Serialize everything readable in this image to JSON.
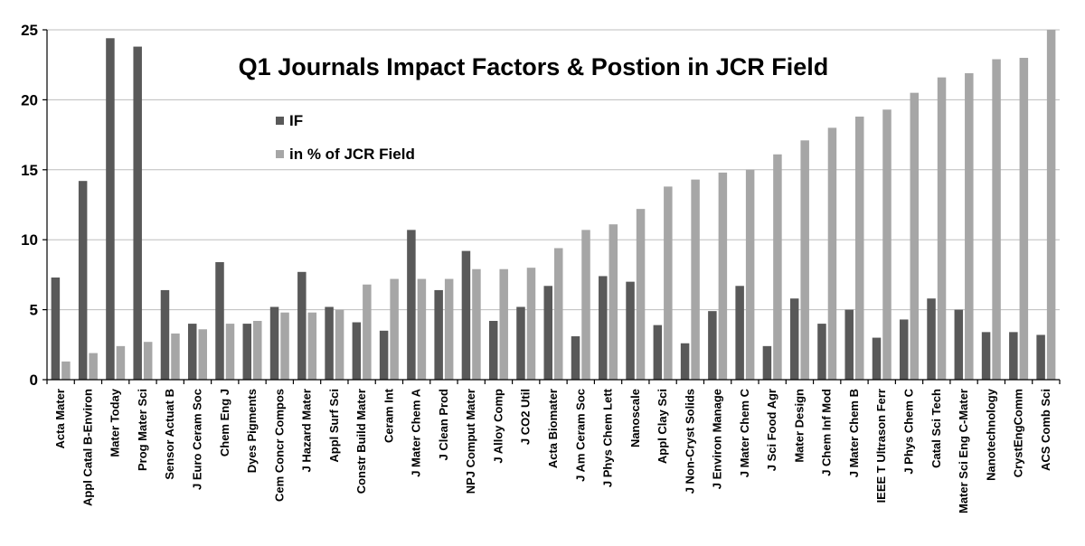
{
  "chart_data": {
    "type": "bar",
    "title": "Q1 Journals Impact Factors & Postion in JCR Field",
    "xlabel": "",
    "ylabel": "",
    "ylim": [
      0,
      25
    ],
    "yticks": [
      0,
      5,
      10,
      15,
      20,
      25
    ],
    "grid": true,
    "legend_position": "top-left",
    "categories": [
      "Acta Mater",
      "Appl Catal B-Environ",
      "Mater Today",
      "Prog Mater Sci",
      "Sensor Actuat B",
      "J Euro Ceram Soc",
      "Chem Eng J",
      "Dyes Pigments",
      "Cem Concr Compos",
      "J Hazard Mater",
      "Appl Surf Sci",
      "Constr Build Mater",
      "Ceram Int",
      "J Mater Chem A",
      "J Clean Prod",
      "NPJ Comput Mater",
      "J Alloy Comp",
      "J CO2 Util",
      "Acta Biomater",
      "J Am Ceram Soc",
      "J Phys Chem Lett",
      "Nanoscale",
      "Appl Clay Sci",
      "J Non-Cryst Solids",
      "J Environ Manage",
      "J Mater Chem C",
      "J Sci Food Agr",
      "Mater Design",
      "J Chem Inf Mod",
      "J Mater Chem B",
      "IEEE T Ultrason Ferr",
      "J Phys Chem C",
      "Catal Sci Tech",
      "Mater Sci Eng C-Mater",
      "Nanotechnology",
      "CrystEngComm",
      "ACS Comb Sci"
    ],
    "series": [
      {
        "name": "IF",
        "color": "#595959",
        "values": [
          7.3,
          14.2,
          24.4,
          23.8,
          6.4,
          4.0,
          8.4,
          4.0,
          5.2,
          7.7,
          5.2,
          4.1,
          3.5,
          10.7,
          6.4,
          9.2,
          4.2,
          5.2,
          6.7,
          3.1,
          7.4,
          7.0,
          3.9,
          2.6,
          4.9,
          6.7,
          2.4,
          5.8,
          4.0,
          5.0,
          3.0,
          4.3,
          5.8,
          5.0,
          3.4,
          3.4,
          3.2
        ]
      },
      {
        "name": "in % of JCR Field",
        "color": "#a6a6a6",
        "values": [
          1.3,
          1.9,
          2.4,
          2.7,
          3.3,
          3.6,
          4.0,
          4.2,
          4.8,
          4.8,
          5.0,
          6.8,
          7.2,
          7.2,
          7.2,
          7.9,
          7.9,
          8.0,
          9.4,
          10.7,
          11.1,
          12.2,
          13.8,
          14.3,
          14.8,
          15.0,
          16.1,
          17.1,
          18.0,
          18.8,
          19.3,
          20.5,
          21.6,
          21.9,
          22.9,
          23.0,
          25.0
        ]
      }
    ]
  }
}
